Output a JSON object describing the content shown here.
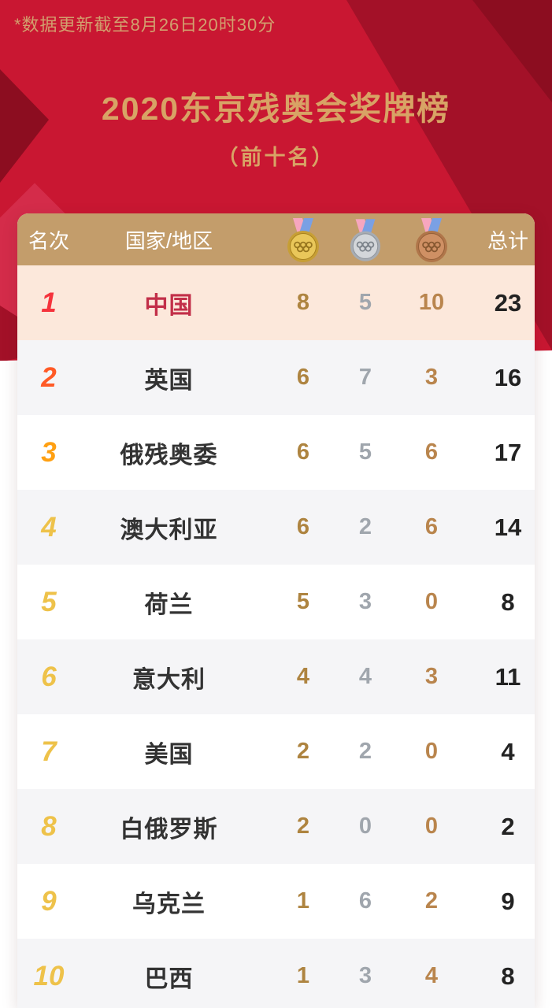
{
  "page": {
    "note": "*数据更新截至8月26日20时30分",
    "title": "2020东京残奥会奖牌榜",
    "subtitle": "（前十名）"
  },
  "table": {
    "header": {
      "rank": "名次",
      "country": "国家/地区",
      "total": "总计",
      "ribbon": {
        "left": "#f7a6bf",
        "right": "#7aa0e4"
      },
      "medals": [
        {
          "name": "gold-medal-icon",
          "face": "#e9c75a",
          "rim": "#c79f35",
          "edge": "#a8821f",
          "rings": "#97761e"
        },
        {
          "name": "silver-medal-icon",
          "face": "#d3d6da",
          "rim": "#a7acb3",
          "edge": "#8d939b",
          "rings": "#7b828a"
        },
        {
          "name": "bronze-medal-icon",
          "face": "#cf9064",
          "rim": "#b0764a",
          "edge": "#955f38",
          "rings": "#875831"
        }
      ]
    },
    "rows": [
      {
        "rank": "1",
        "country": "中国",
        "gold": "8",
        "silver": "5",
        "bronze": "10",
        "total": "23",
        "rank_color": "#f5333c",
        "country_color": "#c22f49",
        "highlight": true
      },
      {
        "rank": "2",
        "country": "英国",
        "gold": "6",
        "silver": "7",
        "bronze": "3",
        "total": "16",
        "rank_color": "#ff5a26"
      },
      {
        "rank": "3",
        "country": "俄残奥委",
        "gold": "6",
        "silver": "5",
        "bronze": "6",
        "total": "17",
        "rank_color": "#ffa012"
      },
      {
        "rank": "4",
        "country": "澳大利亚",
        "gold": "6",
        "silver": "2",
        "bronze": "6",
        "total": "14",
        "rank_color": "#eec24a"
      },
      {
        "rank": "5",
        "country": "荷兰",
        "gold": "5",
        "silver": "3",
        "bronze": "0",
        "total": "8",
        "rank_color": "#eec24a"
      },
      {
        "rank": "6",
        "country": "意大利",
        "gold": "4",
        "silver": "4",
        "bronze": "3",
        "total": "11",
        "rank_color": "#eec24a"
      },
      {
        "rank": "7",
        "country": "美国",
        "gold": "2",
        "silver": "2",
        "bronze": "0",
        "total": "4",
        "rank_color": "#eec24a"
      },
      {
        "rank": "8",
        "country": "白俄罗斯",
        "gold": "2",
        "silver": "0",
        "bronze": "0",
        "total": "2",
        "rank_color": "#eec24a"
      },
      {
        "rank": "9",
        "country": "乌克兰",
        "gold": "1",
        "silver": "6",
        "bronze": "2",
        "total": "9",
        "rank_color": "#eec24a"
      },
      {
        "rank": "10",
        "country": "巴西",
        "gold": "1",
        "silver": "3",
        "bronze": "4",
        "total": "8",
        "rank_color": "#eec24a"
      }
    ]
  },
  "colors": {
    "bg_red": "#c91732",
    "band_dark": "#a31128",
    "corner_dark": "#8c0d20",
    "diamond_light": "#d42c4a",
    "header_bg": "#c39d6b",
    "row_highlight": "#fce8db",
    "row_alt": "#f5f5f7",
    "title_gold": "#d8a365",
    "note_gold": "#d2a06e",
    "gold_text": "#ae8440",
    "silver_text": "#a0a6ad",
    "bronze_text": "#b9854d",
    "total_text": "#222222",
    "country_text": "#333333"
  }
}
